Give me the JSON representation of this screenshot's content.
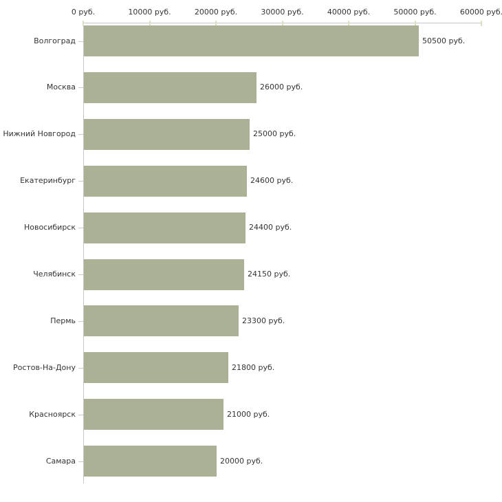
{
  "chart_data": {
    "type": "bar",
    "orientation": "horizontal",
    "title": "",
    "xlabel": "",
    "ylabel": "",
    "xlim": [
      0,
      60000
    ],
    "grid": false,
    "legend": "none",
    "unit": "руб.",
    "categories": [
      "Волгоград",
      "Москва",
      "Нижний Новгород",
      "Екатеринбург",
      "Новосибирск",
      "Челябинск",
      "Пермь",
      "Ростов-На-Дону",
      "Красноярск",
      "Самара"
    ],
    "values": [
      50500,
      26000,
      25000,
      24600,
      24400,
      24150,
      23300,
      21800,
      21000,
      20000
    ],
    "value_labels": [
      "50500 руб.",
      "26000 руб.",
      "25000 руб.",
      "24600 руб.",
      "24400 руб.",
      "24150 руб.",
      "23300 руб.",
      "21800 руб.",
      "21000 руб.",
      "20000 руб."
    ],
    "x_tick_labels": [
      "0 руб.",
      "10000 руб.",
      "20000 руб.",
      "30000 руб.",
      "40000 руб.",
      "50000 руб.",
      "60000 руб."
    ],
    "colors": {
      "bar": "#aab194",
      "axis": "#c6c6c6",
      "tick": "#dcddc3",
      "category_tick": "#c9c9bd",
      "text": "#333333",
      "background": "#ffffff"
    }
  }
}
